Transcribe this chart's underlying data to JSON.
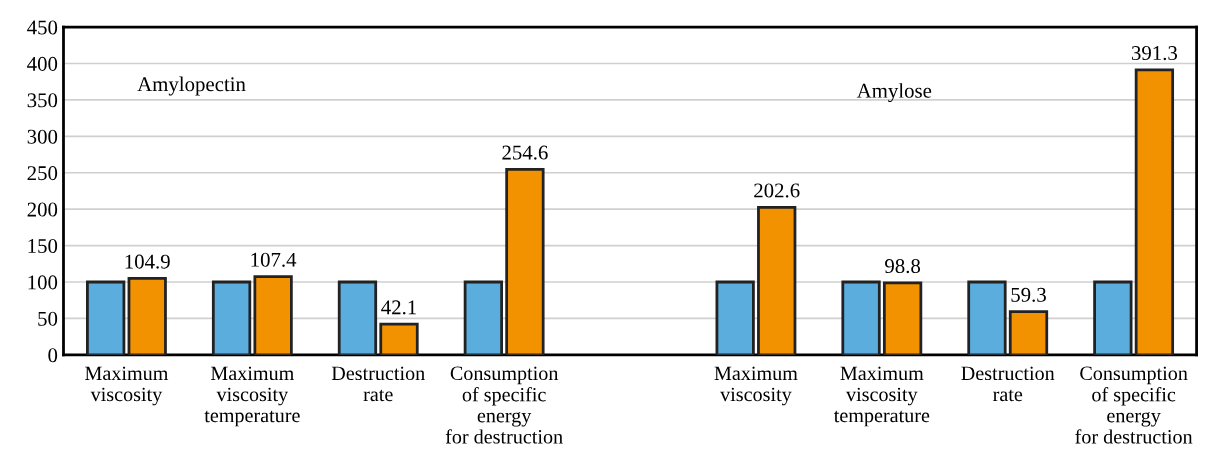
{
  "chart_data": {
    "type": "bar",
    "categories": [
      "Maximum\nviscosity",
      "Maximum\nviscosity\ntemperature",
      "Destruction\nrate",
      "Consumption\nof specific\nenergy\nfor destruction",
      null,
      "Maximum\nviscosity",
      "Maximum\nviscosity\ntemperature",
      "Destruction\nrate",
      "Consumption\nof specific\nenergy\nfor destruction"
    ],
    "series": [
      {
        "color": "#5aaddc",
        "values": [
          100,
          100,
          100,
          100,
          null,
          100,
          100,
          100,
          100
        ]
      },
      {
        "color": "#f39200",
        "values": [
          104.9,
          107.4,
          42.1,
          254.6,
          null,
          202.6,
          98.8,
          59.3,
          391.3
        ],
        "value_labels": [
          "104.9",
          "107.4",
          "42.1",
          "254.6",
          null,
          "202.6",
          "98.8",
          "59.3",
          "391.3"
        ]
      }
    ],
    "ylim": [
      0,
      450
    ],
    "yticks": [
      0,
      50,
      100,
      150,
      200,
      250,
      300,
      350,
      400,
      450
    ],
    "grid": "y",
    "annotations": [
      "Amylopectin",
      "Amylose"
    ]
  }
}
